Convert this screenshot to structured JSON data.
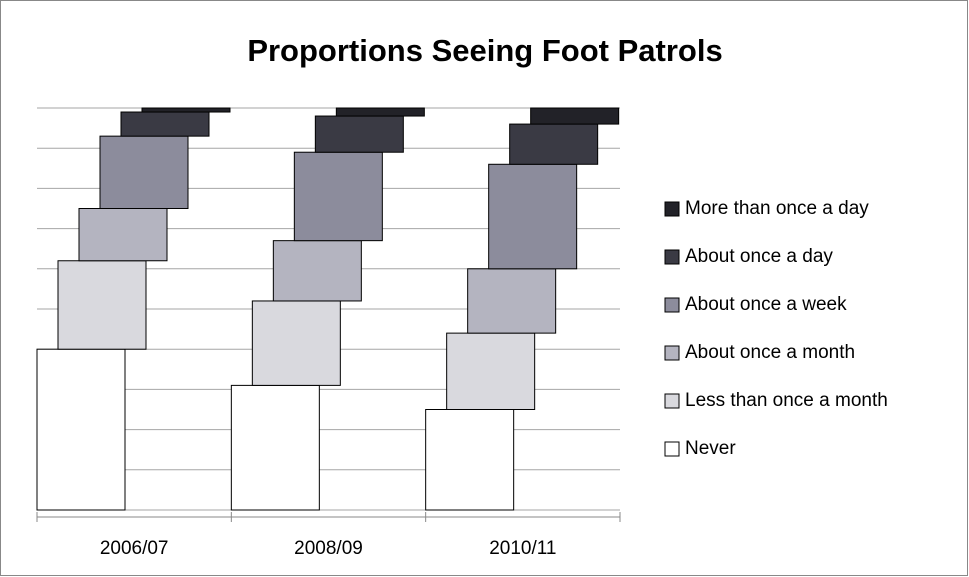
{
  "chart_data": {
    "type": "stacked-bar-3d",
    "title": "Proportions Seeing Foot Patrols",
    "categories": [
      "2006/07",
      "2008/09",
      "2010/11"
    ],
    "series": [
      {
        "name": "Never",
        "color": "#ffffff",
        "values": [
          40,
          31,
          25
        ]
      },
      {
        "name": "Less than once a month",
        "color": "#d9d9de",
        "values": [
          22,
          21,
          19
        ]
      },
      {
        "name": "About once a month",
        "color": "#b4b4c0",
        "values": [
          13,
          15,
          16
        ]
      },
      {
        "name": "About once a week",
        "color": "#8c8c9c",
        "values": [
          18,
          22,
          26
        ]
      },
      {
        "name": "About once a day",
        "color": "#3a3a44",
        "values": [
          6,
          9,
          10
        ]
      },
      {
        "name": "More than once a day",
        "color": "#222228",
        "values": [
          1,
          2,
          4
        ]
      }
    ],
    "ylim": [
      0,
      100
    ],
    "yticks": [
      0,
      10,
      20,
      30,
      40,
      50,
      60,
      70,
      80,
      90,
      100
    ],
    "grid": true
  }
}
